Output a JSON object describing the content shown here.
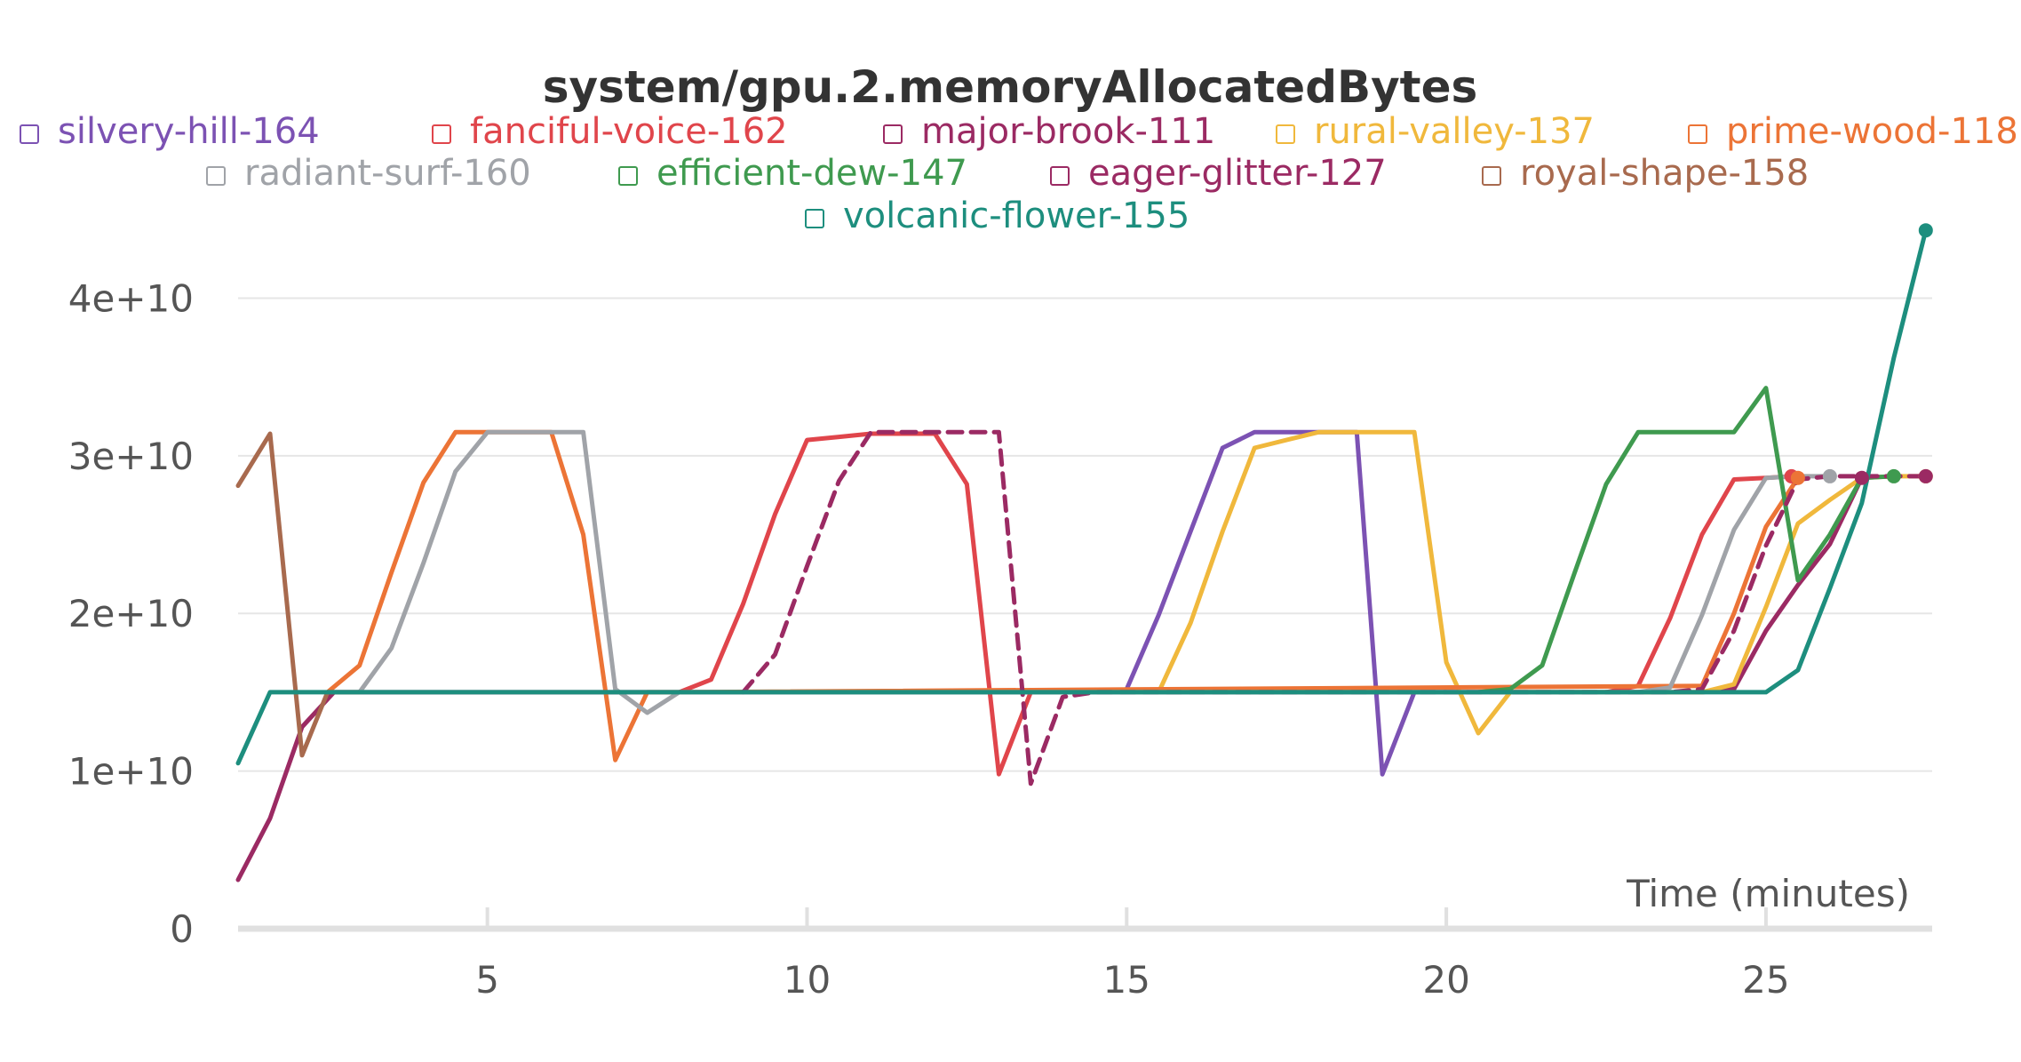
{
  "chart_data": {
    "type": "line",
    "title": "system/gpu.2.memoryAllocatedBytes",
    "xlabel": "Time (minutes)",
    "ylabel": "",
    "xlim": [
      1.1,
      27.6
    ],
    "ylim": [
      0,
      42000000000
    ],
    "yticks": [
      {
        "value": 0,
        "label": "0"
      },
      {
        "value": 10000000000,
        "label": "1e+10"
      },
      {
        "value": 20000000000,
        "label": "2e+10"
      },
      {
        "value": 30000000000,
        "label": "3e+10"
      },
      {
        "value": 40000000000,
        "label": "4e+10"
      }
    ],
    "xticks": [
      {
        "value": 5,
        "label": "5"
      },
      {
        "value": 10,
        "label": "10"
      },
      {
        "value": 15,
        "label": "15"
      },
      {
        "value": 20,
        "label": "20"
      },
      {
        "value": 25,
        "label": "25"
      }
    ],
    "grid": true,
    "legend_placement": "top",
    "series": [
      {
        "name": "silvery-hill-164",
        "color": "#7c52b3",
        "dashed": false,
        "x": [
          15,
          15.5,
          16,
          16.5,
          17,
          17.5,
          18,
          18.6,
          19,
          19.5,
          20
        ],
        "y": [
          15200000000,
          19900000000,
          25200000000,
          30500000000,
          31500000000,
          31500000000,
          31500000000,
          31500000000,
          9800000000,
          15000000000,
          15000000000
        ]
      },
      {
        "name": "fanciful-voice-162",
        "color": "#e0454b",
        "dashed": false,
        "x": [
          8,
          8.5,
          9,
          9.5,
          10,
          10.5,
          11,
          11.5,
          12,
          12.5,
          13,
          13.5,
          14,
          22.5,
          23,
          23.5,
          24,
          24.5,
          25,
          25.4
        ],
        "y": [
          15000000000,
          15800000000,
          20600000000,
          26300000000,
          31000000000,
          31200000000,
          31400000000,
          31400000000,
          31400000000,
          28200000000,
          9800000000,
          15000000000,
          15000000000,
          15000000000,
          15400000000,
          19700000000,
          25000000000,
          28500000000,
          28600000000,
          28700000000
        ]
      },
      {
        "name": "major-brook-111",
        "color": "#9b2a63",
        "dashed": false,
        "x": [
          1.1,
          1.6,
          2.1,
          2.6,
          3,
          24,
          24.5,
          25,
          25.5,
          26,
          26.5
        ],
        "y": [
          3100000000,
          7000000000,
          12800000000,
          15000000000,
          15000000000,
          15000000000,
          15200000000,
          18900000000,
          21800000000,
          24400000000,
          28600000000
        ]
      },
      {
        "name": "rural-valley-137",
        "color": "#f0b83c",
        "dashed": false,
        "x": [
          15,
          15.5,
          16,
          16.5,
          17,
          17.5,
          18,
          18.5,
          19,
          19.5,
          20,
          20.5,
          21,
          24,
          24.5,
          25,
          25.5,
          26,
          26.5,
          27,
          27.5
        ],
        "y": [
          15000000000,
          15000000000,
          19400000000,
          25200000000,
          30500000000,
          31000000000,
          31500000000,
          31500000000,
          31500000000,
          31500000000,
          16900000000,
          12400000000,
          15000000000,
          15000000000,
          15500000000,
          20400000000,
          25700000000,
          27200000000,
          28600000000,
          28700000000,
          28700000000
        ]
      },
      {
        "name": "prime-wood-118",
        "color": "#ec7436",
        "dashed": false,
        "x": [
          2.5,
          3,
          3.5,
          4,
          4.5,
          5,
          5.5,
          6,
          6.5,
          7,
          7.5,
          8,
          24,
          24.5,
          25,
          25.5
        ],
        "y": [
          15000000000,
          16700000000,
          22600000000,
          28300000000,
          31500000000,
          31500000000,
          31500000000,
          31500000000,
          25000000000,
          10700000000,
          15000000000,
          15000000000,
          15400000000,
          20000000000,
          25500000000,
          28600000000
        ]
      },
      {
        "name": "radiant-surf-160",
        "color": "#a0a3a8",
        "dashed": false,
        "x": [
          3,
          3.5,
          4,
          4.5,
          5,
          5.5,
          6,
          6.5,
          7,
          7.5,
          8,
          23,
          23.5,
          24,
          24.5,
          25,
          25.5,
          26
        ],
        "y": [
          15000000000,
          17800000000,
          23200000000,
          29000000000,
          31500000000,
          31500000000,
          31500000000,
          31500000000,
          15200000000,
          13700000000,
          15000000000,
          15000000000,
          15300000000,
          19900000000,
          25300000000,
          28600000000,
          28700000000,
          28700000000
        ]
      },
      {
        "name": "efficient-dew-147",
        "color": "#3f9a4f",
        "dashed": false,
        "x": [
          20.5,
          21,
          21.5,
          22,
          22.5,
          23,
          23.5,
          24,
          24.5,
          25,
          25.5,
          26,
          26.5,
          27
        ],
        "y": [
          15000000000,
          15200000000,
          16700000000,
          22500000000,
          28200000000,
          31500000000,
          31500000000,
          31500000000,
          31500000000,
          34300000000,
          22100000000,
          25000000000,
          28600000000,
          28700000000
        ]
      },
      {
        "name": "eager-glitter-127",
        "color": "#9b2a63",
        "dashed": true,
        "x": [
          9,
          9.5,
          10,
          10.5,
          11,
          11.5,
          12,
          12.5,
          13,
          13.5,
          14,
          14.5,
          15,
          23.5,
          24,
          24.5,
          25,
          25.5,
          26,
          26.5,
          27,
          27.5
        ],
        "y": [
          15000000000,
          17400000000,
          23000000000,
          28400000000,
          31500000000,
          31500000000,
          31500000000,
          31500000000,
          31500000000,
          9200000000,
          14700000000,
          15000000000,
          15000000000,
          15000000000,
          15200000000,
          18900000000,
          24300000000,
          28500000000,
          28700000000,
          28700000000,
          28700000000,
          28700000000
        ]
      },
      {
        "name": "royal-shape-158",
        "color": "#a86a4e",
        "dashed": false,
        "x": [
          1.1,
          1.6,
          2.1,
          2.5,
          3
        ],
        "y": [
          28100000000,
          31400000000,
          11000000000,
          15000000000,
          15000000000
        ]
      },
      {
        "name": "volcanic-flower-155",
        "color": "#1d8e7e",
        "dashed": false,
        "x": [
          1.1,
          1.6,
          2,
          25,
          25.5,
          26,
          26.5,
          27,
          27.5
        ],
        "y": [
          10500000000,
          15000000000,
          15000000000,
          15000000000,
          16400000000,
          21600000000,
          27000000000,
          36200000000,
          44300000000
        ]
      }
    ]
  }
}
